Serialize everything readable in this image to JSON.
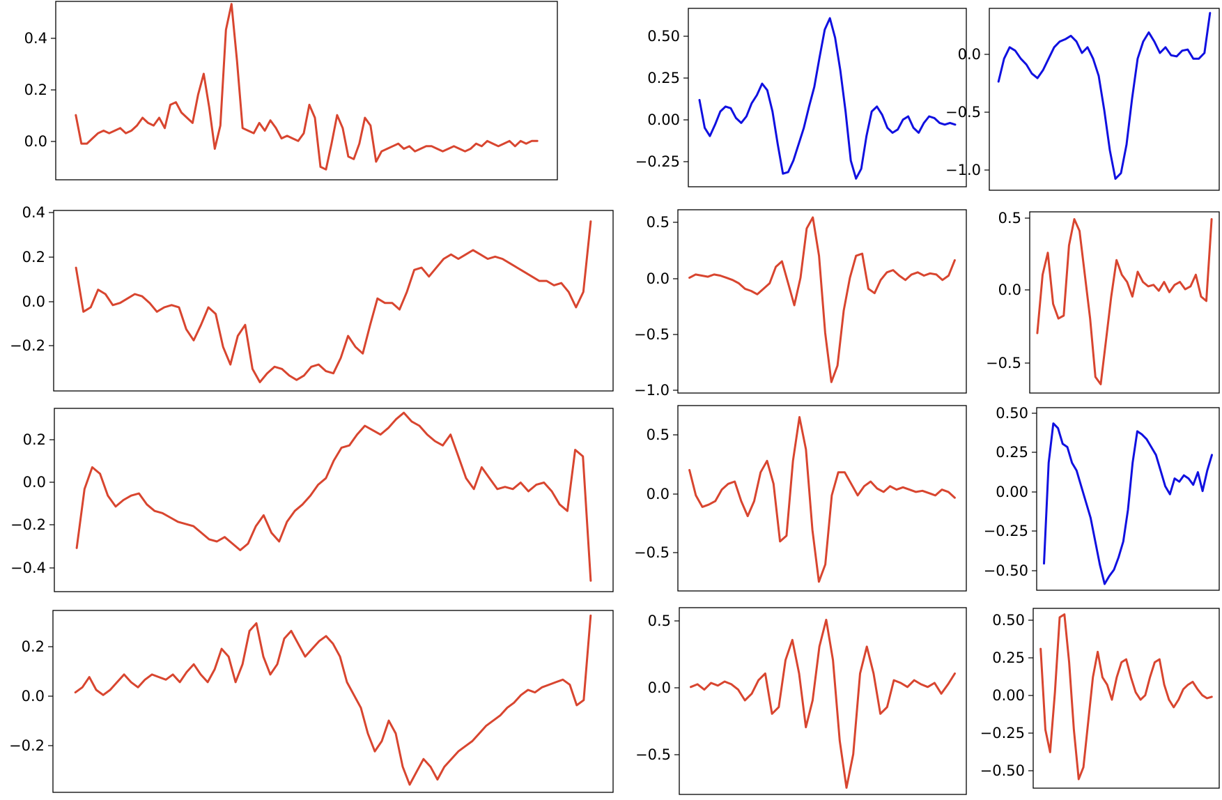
{
  "colors": {
    "red": "#d8452f",
    "blue": "#1010e0"
  },
  "chart_data": [
    {
      "type": "line",
      "grid": false,
      "color": "#d8452f",
      "ylim": [
        -0.16,
        0.53
      ],
      "ytick_labels": [
        "0.4",
        "0.2",
        "0.0"
      ],
      "values": [
        0.09,
        -0.02,
        -0.02,
        0.0,
        0.02,
        0.03,
        0.02,
        0.03,
        0.04,
        0.02,
        0.03,
        0.05,
        0.08,
        0.06,
        0.05,
        0.08,
        0.04,
        0.13,
        0.14,
        0.1,
        0.08,
        0.06,
        0.17,
        0.25,
        0.12,
        -0.04,
        0.05,
        0.42,
        0.52,
        0.3,
        0.04,
        0.03,
        0.02,
        0.06,
        0.03,
        0.07,
        0.04,
        0.0,
        0.01,
        0.0,
        -0.01,
        0.02,
        0.13,
        0.08,
        -0.11,
        -0.12,
        -0.02,
        0.09,
        0.04,
        -0.07,
        -0.08,
        -0.02,
        0.08,
        0.05,
        -0.09,
        -0.05,
        -0.04,
        -0.03,
        -0.02,
        -0.04,
        -0.03,
        -0.05,
        -0.04,
        -0.03,
        -0.03,
        -0.04,
        -0.05,
        -0.04,
        -0.03,
        -0.04,
        -0.05,
        -0.04,
        -0.02,
        -0.03,
        -0.01,
        -0.02,
        -0.03,
        -0.02,
        -0.01,
        -0.03,
        -0.01,
        -0.02,
        -0.01,
        -0.01
      ]
    },
    {
      "type": "line",
      "grid": false,
      "color": "#1010e0",
      "ylim": [
        -0.41,
        0.68
      ],
      "ytick_labels": [
        "0.50",
        "0.25",
        "0.00",
        "−0.25"
      ],
      "values": [
        0.12,
        -0.05,
        -0.1,
        -0.03,
        0.05,
        0.08,
        0.07,
        0.01,
        -0.02,
        0.02,
        0.1,
        0.15,
        0.22,
        0.18,
        0.05,
        -0.15,
        -0.33,
        -0.32,
        -0.25,
        -0.15,
        -0.05,
        0.08,
        0.2,
        0.38,
        0.55,
        0.62,
        0.5,
        0.3,
        0.05,
        -0.25,
        -0.36,
        -0.3,
        -0.1,
        0.05,
        0.08,
        0.03,
        -0.05,
        -0.08,
        -0.06,
        0.0,
        0.02,
        -0.05,
        -0.08,
        -0.02,
        0.02,
        0.01,
        -0.02,
        -0.03,
        -0.02,
        -0.03
      ]
    },
    {
      "type": "line",
      "grid": false,
      "color": "#1010e0",
      "ylim": [
        -1.2,
        0.39
      ],
      "ytick_labels": [
        "0.0",
        "−0.5",
        "−1.0"
      ],
      "values": [
        -0.25,
        -0.05,
        0.05,
        0.02,
        -0.05,
        -0.1,
        -0.18,
        -0.22,
        -0.15,
        -0.05,
        0.05,
        0.1,
        0.12,
        0.15,
        0.1,
        0.0,
        0.05,
        -0.05,
        -0.2,
        -0.5,
        -0.85,
        -1.1,
        -1.05,
        -0.8,
        -0.4,
        -0.05,
        0.1,
        0.18,
        0.1,
        0.0,
        0.05,
        -0.02,
        -0.03,
        0.02,
        0.03,
        -0.05,
        -0.05,
        0.0,
        0.35
      ]
    },
    {
      "type": "line",
      "grid": false,
      "color": "#d8452f",
      "ylim": [
        -0.4,
        0.42
      ],
      "ytick_labels": [
        "0.4",
        "0.2",
        "0.0",
        "−0.2"
      ],
      "values": [
        0.16,
        -0.04,
        -0.02,
        0.06,
        0.04,
        -0.01,
        0.0,
        0.02,
        0.04,
        0.03,
        0.0,
        -0.04,
        -0.02,
        -0.01,
        -0.02,
        -0.12,
        -0.17,
        -0.1,
        -0.02,
        -0.05,
        -0.2,
        -0.28,
        -0.15,
        -0.1,
        -0.3,
        -0.36,
        -0.32,
        -0.29,
        -0.3,
        -0.33,
        -0.35,
        -0.33,
        -0.29,
        -0.28,
        -0.31,
        -0.32,
        -0.25,
        -0.15,
        -0.2,
        -0.23,
        -0.1,
        0.02,
        0.0,
        0.0,
        -0.03,
        0.05,
        0.15,
        0.16,
        0.12,
        0.16,
        0.2,
        0.22,
        0.2,
        0.22,
        0.24,
        0.22,
        0.2,
        0.21,
        0.2,
        0.18,
        0.16,
        0.14,
        0.12,
        0.1,
        0.1,
        0.08,
        0.09,
        0.05,
        -0.02,
        0.05,
        0.37
      ]
    },
    {
      "type": "line",
      "grid": false,
      "color": "#d8452f",
      "ylim": [
        -1.05,
        0.62
      ],
      "ytick_labels": [
        "0.5",
        "0.0",
        "−0.5",
        "−1.0"
      ],
      "values": [
        0.0,
        0.03,
        0.02,
        0.01,
        0.03,
        0.02,
        0.0,
        -0.02,
        -0.05,
        -0.1,
        -0.12,
        -0.15,
        -0.1,
        -0.05,
        0.1,
        0.15,
        -0.05,
        -0.25,
        0.0,
        0.45,
        0.55,
        0.2,
        -0.5,
        -0.95,
        -0.8,
        -0.3,
        0.0,
        0.2,
        0.22,
        -0.1,
        -0.14,
        -0.02,
        0.05,
        0.07,
        0.02,
        -0.02,
        0.03,
        0.05,
        0.02,
        0.04,
        0.03,
        -0.02,
        0.02,
        0.16
      ]
    },
    {
      "type": "line",
      "grid": false,
      "color": "#d8452f",
      "ylim": [
        -0.71,
        0.53
      ],
      "ytick_labels": [
        "0.5",
        "0.0",
        "−0.5"
      ],
      "values": [
        -0.3,
        0.1,
        0.25,
        -0.1,
        -0.2,
        -0.18,
        0.3,
        0.48,
        0.4,
        0.1,
        -0.2,
        -0.6,
        -0.65,
        -0.35,
        -0.05,
        0.2,
        0.1,
        0.05,
        -0.05,
        0.12,
        0.05,
        0.02,
        0.03,
        -0.01,
        0.05,
        -0.02,
        0.03,
        0.05,
        0.0,
        0.02,
        0.1,
        -0.05,
        -0.08,
        0.48
      ]
    },
    {
      "type": "line",
      "grid": false,
      "color": "#d8452f",
      "ylim": [
        -0.52,
        0.32
      ],
      "ytick_labels": [
        "0.2",
        "0.0",
        "−0.2",
        "−0.4"
      ],
      "values": [
        -0.32,
        -0.05,
        0.05,
        0.02,
        -0.08,
        -0.13,
        -0.1,
        -0.08,
        -0.07,
        -0.12,
        -0.15,
        -0.16,
        -0.18,
        -0.2,
        -0.21,
        -0.22,
        -0.25,
        -0.28,
        -0.29,
        -0.27,
        -0.3,
        -0.33,
        -0.3,
        -0.22,
        -0.17,
        -0.25,
        -0.29,
        -0.2,
        -0.15,
        -0.12,
        -0.08,
        -0.03,
        0.0,
        0.08,
        0.14,
        0.15,
        0.2,
        0.24,
        0.22,
        0.2,
        0.23,
        0.27,
        0.3,
        0.26,
        0.24,
        0.2,
        0.17,
        0.15,
        0.2,
        0.1,
        0.0,
        -0.05,
        0.05,
        0.0,
        -0.05,
        -0.04,
        -0.05,
        -0.02,
        -0.06,
        -0.03,
        -0.02,
        -0.06,
        -0.12,
        -0.15,
        0.13,
        0.1,
        -0.47
      ]
    },
    {
      "type": "line",
      "grid": false,
      "color": "#d8452f",
      "ylim": [
        -0.83,
        0.78
      ],
      "ytick_labels": [
        "0.5",
        "0.0",
        "−0.5"
      ],
      "values": [
        0.22,
        0.0,
        -0.1,
        -0.08,
        -0.05,
        0.05,
        0.1,
        0.12,
        -0.05,
        -0.18,
        -0.05,
        0.2,
        0.3,
        0.1,
        -0.4,
        -0.35,
        0.3,
        0.68,
        0.4,
        -0.3,
        -0.75,
        -0.6,
        0.0,
        0.2,
        0.2,
        0.1,
        0.0,
        0.08,
        0.12,
        0.06,
        0.03,
        0.08,
        0.05,
        0.07,
        0.05,
        0.03,
        0.04,
        0.02,
        0.0,
        0.05,
        0.03,
        -0.02
      ]
    },
    {
      "type": "line",
      "grid": false,
      "color": "#1010e0",
      "ylim": [
        -0.61,
        0.55
      ],
      "ytick_labels": [
        "0.50",
        "0.25",
        "0.00",
        "−0.25",
        "−0.50"
      ],
      "values": [
        -0.44,
        0.2,
        0.45,
        0.42,
        0.32,
        0.3,
        0.2,
        0.15,
        0.05,
        -0.05,
        -0.15,
        -0.3,
        -0.45,
        -0.57,
        -0.52,
        -0.48,
        -0.4,
        -0.3,
        -0.1,
        0.2,
        0.4,
        0.38,
        0.35,
        0.3,
        0.25,
        0.15,
        0.05,
        0.0,
        0.1,
        0.08,
        0.12,
        0.1,
        0.06,
        0.14,
        0.02,
        0.15,
        0.25
      ]
    },
    {
      "type": "line",
      "grid": false,
      "color": "#d8452f",
      "ylim": [
        -0.38,
        0.33
      ],
      "ytick_labels": [
        "0.2",
        "0.0",
        "−0.2"
      ],
      "values": [
        0.01,
        0.03,
        0.07,
        0.02,
        0.0,
        0.02,
        0.05,
        0.08,
        0.05,
        0.03,
        0.06,
        0.08,
        0.07,
        0.06,
        0.08,
        0.05,
        0.09,
        0.12,
        0.08,
        0.05,
        0.1,
        0.18,
        0.15,
        0.05,
        0.12,
        0.25,
        0.28,
        0.15,
        0.08,
        0.12,
        0.22,
        0.25,
        0.2,
        0.15,
        0.18,
        0.21,
        0.23,
        0.2,
        0.15,
        0.05,
        0.0,
        -0.05,
        -0.15,
        -0.22,
        -0.18,
        -0.1,
        -0.15,
        -0.28,
        -0.35,
        -0.3,
        -0.25,
        -0.28,
        -0.33,
        -0.28,
        -0.25,
        -0.22,
        -0.2,
        -0.18,
        -0.15,
        -0.12,
        -0.1,
        -0.08,
        -0.05,
        -0.03,
        0.0,
        0.02,
        0.01,
        0.03,
        0.04,
        0.05,
        0.06,
        0.04,
        -0.04,
        -0.02,
        0.31
      ]
    },
    {
      "type": "line",
      "grid": false,
      "color": "#d8452f",
      "ylim": [
        -0.8,
        0.59
      ],
      "ytick_labels": [
        "0.5",
        "0.0",
        "−0.5"
      ],
      "values": [
        0.0,
        0.02,
        -0.02,
        0.03,
        0.01,
        0.04,
        0.02,
        -0.02,
        -0.1,
        -0.05,
        0.05,
        0.1,
        -0.2,
        -0.15,
        0.2,
        0.35,
        0.1,
        -0.3,
        -0.1,
        0.3,
        0.5,
        0.2,
        -0.4,
        -0.75,
        -0.5,
        0.1,
        0.3,
        0.1,
        -0.2,
        -0.15,
        0.05,
        0.03,
        0.0,
        0.05,
        0.02,
        0.0,
        0.03,
        -0.05,
        0.02,
        0.1
      ]
    },
    {
      "type": "line",
      "grid": false,
      "color": "#d8452f",
      "ylim": [
        -0.64,
        0.56
      ],
      "ytick_labels": [
        "0.50",
        "0.25",
        "0.00",
        "−0.25",
        "−0.50"
      ],
      "values": [
        0.29,
        -0.25,
        -0.4,
        0.0,
        0.5,
        0.52,
        0.2,
        -0.25,
        -0.58,
        -0.5,
        -0.2,
        0.1,
        0.27,
        0.1,
        0.05,
        -0.05,
        0.1,
        0.2,
        0.22,
        0.1,
        0.0,
        -0.05,
        -0.02,
        0.1,
        0.2,
        0.22,
        0.05,
        -0.05,
        -0.1,
        -0.05,
        0.02,
        0.05,
        0.07,
        0.02,
        -0.02,
        -0.04,
        -0.03
      ]
    }
  ]
}
